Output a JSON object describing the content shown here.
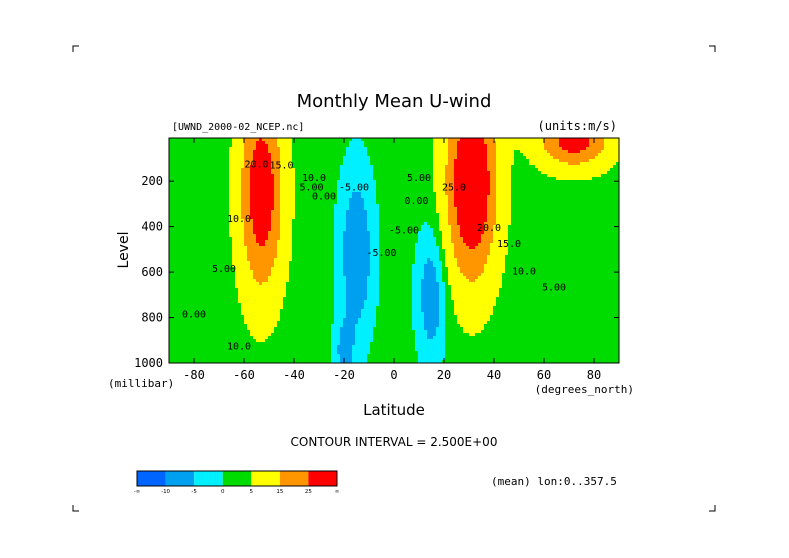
{
  "chart_data": {
    "type": "heatmap",
    "title": "Monthly Mean U-wind",
    "dataset_label": "[UWND_2000-02_NCEP.nc]",
    "units_label": "(units:m/s)",
    "xlabel": "Latitude",
    "x_units": "(degrees_north)",
    "ylabel": "Level",
    "y_units": "(millibar)",
    "xlim": [
      -90,
      90
    ],
    "ylim": [
      1000,
      10
    ],
    "x_ticks": [
      -80,
      -60,
      -40,
      -20,
      0,
      20,
      40,
      60,
      80
    ],
    "y_ticks": [
      200,
      400,
      600,
      800,
      1000
    ],
    "contour_interval_text": "CONTOUR INTERVAL = 2.500E+00",
    "footer_note": "(mean) lon:0..357.5",
    "colorbar": {
      "colors": [
        "#0064ff",
        "#00a0f0",
        "#00f0ff",
        "#00dc00",
        "#ffff00",
        "#ff9600",
        "#ff0000"
      ],
      "labels": [
        "-∞",
        "-10",
        "-5",
        "0",
        "5",
        "15",
        "25",
        "∞"
      ]
    },
    "contour_labels": [
      {
        "text": "20.0",
        "lat": -55,
        "lev": 140
      },
      {
        "text": "15.0",
        "lat": -45,
        "lev": 145
      },
      {
        "text": "10.0",
        "lat": -32,
        "lev": 200
      },
      {
        "text": "5.00",
        "lat": -33,
        "lev": 240
      },
      {
        "text": "0.00",
        "lat": -28,
        "lev": 280
      },
      {
        "text": "-5.00",
        "lat": -16,
        "lev": 240
      },
      {
        "text": "5.00",
        "lat": 10,
        "lev": 200
      },
      {
        "text": "0.00",
        "lat": 9,
        "lev": 300
      },
      {
        "text": "-5.00",
        "lat": 4,
        "lev": 430
      },
      {
        "text": "-5.00",
        "lat": -5,
        "lev": 530
      },
      {
        "text": "10.0",
        "lat": -62,
        "lev": 380
      },
      {
        "text": "5.00",
        "lat": -68,
        "lev": 600
      },
      {
        "text": "0.00",
        "lat": -80,
        "lev": 800
      },
      {
        "text": "10.0",
        "lat": -62,
        "lev": 940
      },
      {
        "text": "25.0",
        "lat": 24,
        "lev": 240
      },
      {
        "text": "20.0",
        "lat": 38,
        "lev": 420
      },
      {
        "text": "15.0",
        "lat": 46,
        "lev": 490
      },
      {
        "text": "10.0",
        "lat": 52,
        "lev": 610
      },
      {
        "text": "5.00",
        "lat": 64,
        "lev": 680
      }
    ],
    "jets": [
      {
        "lat": -53,
        "lev": 250,
        "peak": 31,
        "lat_sigma": 8.5,
        "lev_sigma": 430
      },
      {
        "lat": 31,
        "lev": 210,
        "peak": 37,
        "lat_sigma": 10,
        "lev_sigma": 420
      },
      {
        "lat": 72,
        "lev": 20,
        "peak": 28,
        "lat_sigma": 14,
        "lev_sigma": 120
      }
    ],
    "easterlies": [
      {
        "lat": -15,
        "lev": 520,
        "peak": -12,
        "lat_sigma": 7,
        "lev_sigma": 380
      },
      {
        "lat": 15,
        "lev": 700,
        "peak": -11,
        "lat_sigma": 6,
        "lev_sigma": 300
      },
      {
        "lat": -20,
        "lev": 950,
        "peak": -8,
        "lat_sigma": 4,
        "lev_sigma": 140
      }
    ],
    "background_value": 2
  }
}
